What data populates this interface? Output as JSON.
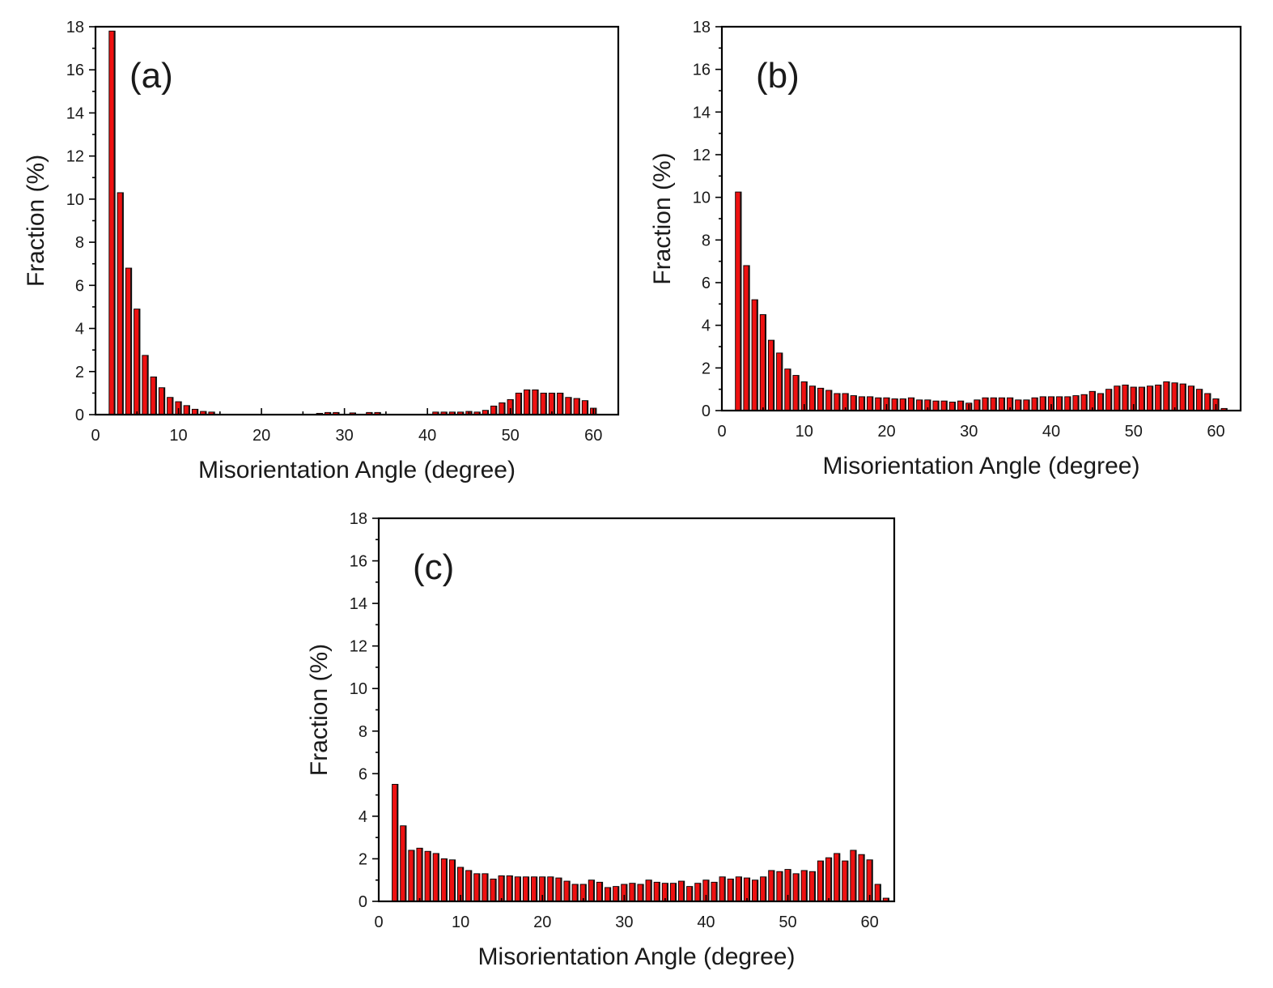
{
  "figure": {
    "background": "#ffffff",
    "bar_color": "#ee1111",
    "bar_edge_color": "#000000"
  },
  "chart_data": [
    {
      "type": "bar",
      "panel_label": "(a)",
      "xlabel": "Misorientation Angle (degree)",
      "ylabel": "Fraction (%)",
      "xlim": [
        0,
        63
      ],
      "ylim": [
        0,
        18
      ],
      "xticks": [
        0,
        10,
        20,
        30,
        40,
        50,
        60
      ],
      "yticks": [
        0,
        2,
        4,
        6,
        8,
        10,
        12,
        14,
        16,
        18
      ],
      "x": [
        2,
        3,
        4,
        5,
        6,
        7,
        8,
        9,
        10,
        11,
        12,
        13,
        14,
        15,
        16,
        17,
        18,
        19,
        20,
        21,
        22,
        23,
        24,
        25,
        26,
        27,
        28,
        29,
        30,
        31,
        32,
        33,
        34,
        35,
        36,
        37,
        38,
        39,
        40,
        41,
        42,
        43,
        44,
        45,
        46,
        47,
        48,
        49,
        50,
        51,
        52,
        53,
        54,
        55,
        56,
        57,
        58,
        59,
        60
      ],
      "values": [
        17.8,
        10.3,
        6.8,
        4.9,
        2.75,
        1.75,
        1.25,
        0.8,
        0.6,
        0.42,
        0.25,
        0.15,
        0.12,
        0,
        0,
        0,
        0,
        0,
        0,
        0,
        0,
        0,
        0,
        0,
        0,
        0.06,
        0.1,
        0.1,
        0.02,
        0.08,
        0,
        0.1,
        0.1,
        0,
        0,
        0,
        0,
        0,
        0,
        0.12,
        0.12,
        0.12,
        0.12,
        0.15,
        0.12,
        0.2,
        0.4,
        0.55,
        0.7,
        1.0,
        1.15,
        1.15,
        1.0,
        1.0,
        1.0,
        0.8,
        0.75,
        0.65,
        0.3
      ]
    },
    {
      "type": "bar",
      "panel_label": "(b)",
      "xlabel": "Misorientation Angle (degree)",
      "ylabel": "Fraction (%)",
      "xlim": [
        0,
        63
      ],
      "ylim": [
        0,
        18
      ],
      "xticks": [
        0,
        10,
        20,
        30,
        40,
        50,
        60
      ],
      "yticks": [
        0,
        2,
        4,
        6,
        8,
        10,
        12,
        14,
        16,
        18
      ],
      "x": [
        2,
        3,
        4,
        5,
        6,
        7,
        8,
        9,
        10,
        11,
        12,
        13,
        14,
        15,
        16,
        17,
        18,
        19,
        20,
        21,
        22,
        23,
        24,
        25,
        26,
        27,
        28,
        29,
        30,
        31,
        32,
        33,
        34,
        35,
        36,
        37,
        38,
        39,
        40,
        41,
        42,
        43,
        44,
        45,
        46,
        47,
        48,
        49,
        50,
        51,
        52,
        53,
        54,
        55,
        56,
        57,
        58,
        59,
        60,
        61
      ],
      "values": [
        10.25,
        6.8,
        5.2,
        4.5,
        3.3,
        2.7,
        1.95,
        1.65,
        1.35,
        1.15,
        1.05,
        0.95,
        0.8,
        0.8,
        0.7,
        0.65,
        0.65,
        0.6,
        0.6,
        0.55,
        0.55,
        0.6,
        0.5,
        0.5,
        0.45,
        0.45,
        0.4,
        0.45,
        0.35,
        0.5,
        0.6,
        0.6,
        0.6,
        0.6,
        0.5,
        0.5,
        0.6,
        0.65,
        0.65,
        0.65,
        0.65,
        0.7,
        0.75,
        0.9,
        0.8,
        1.0,
        1.15,
        1.2,
        1.1,
        1.1,
        1.15,
        1.2,
        1.35,
        1.3,
        1.25,
        1.15,
        1.0,
        0.8,
        0.55,
        0.1
      ]
    },
    {
      "type": "bar",
      "panel_label": "(c)",
      "xlabel": "Misorientation Angle (degree)",
      "ylabel": "Fraction (%)",
      "xlim": [
        0,
        63
      ],
      "ylim": [
        0,
        18
      ],
      "xticks": [
        0,
        10,
        20,
        30,
        40,
        50,
        60
      ],
      "yticks": [
        0,
        2,
        4,
        6,
        8,
        10,
        12,
        14,
        16,
        18
      ],
      "x": [
        2,
        3,
        4,
        5,
        6,
        7,
        8,
        9,
        10,
        11,
        12,
        13,
        14,
        15,
        16,
        17,
        18,
        19,
        20,
        21,
        22,
        23,
        24,
        25,
        26,
        27,
        28,
        29,
        30,
        31,
        32,
        33,
        34,
        35,
        36,
        37,
        38,
        39,
        40,
        41,
        42,
        43,
        44,
        45,
        46,
        47,
        48,
        49,
        50,
        51,
        52,
        53,
        54,
        55,
        56,
        57,
        58,
        59,
        60,
        61,
        62
      ],
      "values": [
        5.5,
        3.55,
        2.4,
        2.5,
        2.35,
        2.25,
        2.0,
        1.95,
        1.6,
        1.45,
        1.3,
        1.3,
        1.05,
        1.2,
        1.2,
        1.15,
        1.15,
        1.15,
        1.15,
        1.15,
        1.1,
        0.95,
        0.8,
        0.8,
        1.0,
        0.9,
        0.65,
        0.7,
        0.8,
        0.85,
        0.8,
        1.0,
        0.9,
        0.85,
        0.85,
        0.95,
        0.7,
        0.85,
        1.0,
        0.9,
        1.15,
        1.05,
        1.15,
        1.1,
        1.0,
        1.15,
        1.45,
        1.4,
        1.5,
        1.3,
        1.45,
        1.4,
        1.9,
        2.05,
        2.25,
        1.9,
        2.4,
        2.2,
        1.95,
        0.8,
        0.15
      ]
    }
  ]
}
